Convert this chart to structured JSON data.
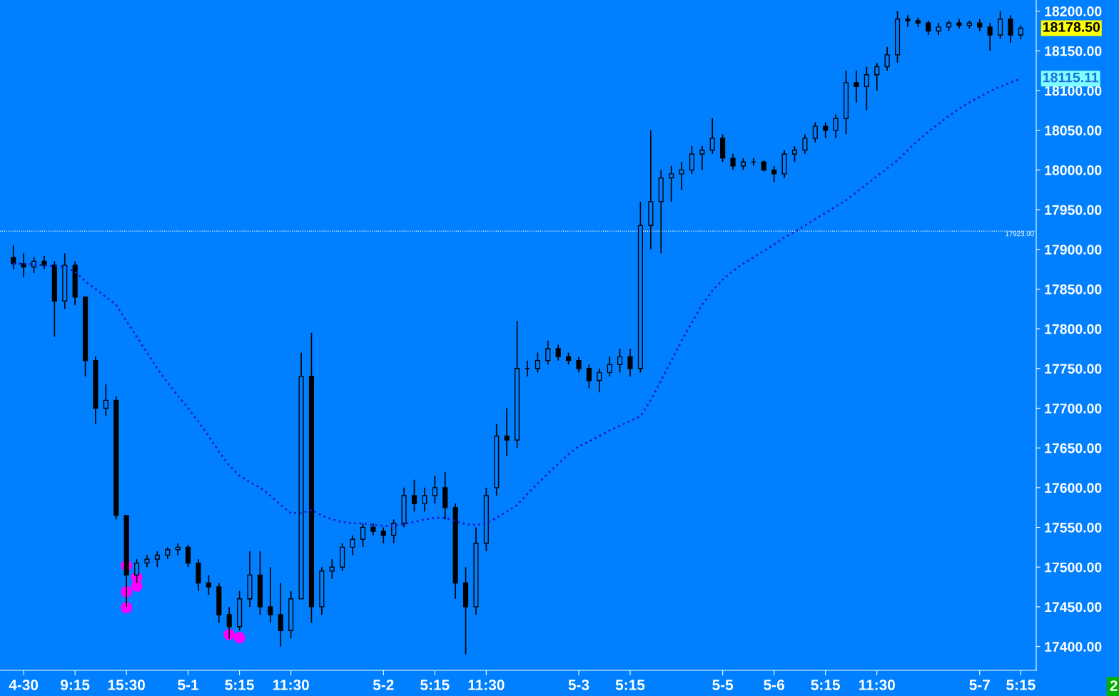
{
  "chart_data": {
    "type": "candlestick",
    "categories": [
      null,
      "4-30",
      null,
      null,
      null,
      null,
      "9:15",
      null,
      null,
      null,
      null,
      "15:30",
      null,
      null,
      null,
      null,
      null,
      "5-1",
      null,
      null,
      null,
      null,
      "5:15",
      null,
      null,
      null,
      null,
      "11:30",
      null,
      null,
      null,
      null,
      null,
      null,
      null,
      null,
      "5-2",
      null,
      null,
      null,
      null,
      "5:15",
      null,
      null,
      null,
      null,
      "11:30",
      null,
      null,
      null,
      null,
      null,
      null,
      null,
      null,
      "5-3",
      null,
      null,
      null,
      null,
      "5:15",
      null,
      null,
      null,
      null,
      null,
      null,
      null,
      null,
      "5-5",
      null,
      null,
      null,
      null,
      "5-6",
      null,
      null,
      null,
      null,
      "5:15",
      null,
      null,
      null,
      null,
      "11:30",
      null,
      null,
      null,
      null,
      null,
      null,
      null,
      null,
      null,
      "5-7",
      null,
      null,
      null,
      "5:15"
    ],
    "series": [
      {
        "color": "#000000",
        "ohlc": [
          [
            17890,
            17905,
            17875,
            17882
          ],
          [
            17882,
            17895,
            17865,
            17878
          ],
          [
            17878,
            17890,
            17870,
            17885
          ],
          [
            17885,
            17892,
            17875,
            17880
          ],
          [
            17880,
            17885,
            17790,
            17835
          ],
          [
            17835,
            17895,
            17825,
            17880
          ],
          [
            17880,
            17885,
            17830,
            17840
          ],
          [
            17840,
            17840,
            17740,
            17760
          ],
          [
            17760,
            17765,
            17680,
            17700
          ],
          [
            17700,
            17730,
            17690,
            17710
          ],
          [
            17710,
            17715,
            17560,
            17565
          ],
          [
            17565,
            17565,
            17450,
            17490
          ],
          [
            17490,
            17510,
            17480,
            17505
          ],
          [
            17505,
            17515,
            17500,
            17510
          ],
          [
            17510,
            17520,
            17500,
            17515
          ],
          [
            17515,
            17525,
            17510,
            17522
          ],
          [
            17522,
            17530,
            17515,
            17525
          ],
          [
            17525,
            17528,
            17500,
            17505
          ],
          [
            17505,
            17510,
            17470,
            17480
          ],
          [
            17480,
            17490,
            17465,
            17475
          ],
          [
            17475,
            17480,
            17430,
            17440
          ],
          [
            17440,
            17450,
            17410,
            17425
          ],
          [
            17425,
            17470,
            17420,
            17460
          ],
          [
            17460,
            17520,
            17450,
            17490
          ],
          [
            17490,
            17520,
            17440,
            17450
          ],
          [
            17450,
            17500,
            17430,
            17440
          ],
          [
            17440,
            17480,
            17400,
            17420
          ],
          [
            17420,
            17470,
            17410,
            17460
          ],
          [
            17460,
            17770,
            17460,
            17740
          ],
          [
            17740,
            17795,
            17430,
            17450
          ],
          [
            17450,
            17500,
            17440,
            17495
          ],
          [
            17495,
            17510,
            17485,
            17500
          ],
          [
            17500,
            17530,
            17495,
            17525
          ],
          [
            17525,
            17540,
            17515,
            17535
          ],
          [
            17535,
            17555,
            17525,
            17550
          ],
          [
            17550,
            17555,
            17540,
            17545
          ],
          [
            17545,
            17550,
            17530,
            17540
          ],
          [
            17540,
            17560,
            17530,
            17555
          ],
          [
            17555,
            17600,
            17550,
            17590
          ],
          [
            17590,
            17610,
            17570,
            17580
          ],
          [
            17580,
            17600,
            17570,
            17590
          ],
          [
            17590,
            17615,
            17580,
            17600
          ],
          [
            17600,
            17620,
            17560,
            17575
          ],
          [
            17575,
            17580,
            17460,
            17480
          ],
          [
            17480,
            17500,
            17390,
            17450
          ],
          [
            17450,
            17550,
            17440,
            17530
          ],
          [
            17530,
            17600,
            17520,
            17590
          ],
          [
            17600,
            17680,
            17590,
            17665
          ],
          [
            17665,
            17700,
            17640,
            17660
          ],
          [
            17660,
            17810,
            17650,
            17750
          ],
          [
            17750,
            17760,
            17740,
            17750
          ],
          [
            17750,
            17770,
            17745,
            17760
          ],
          [
            17760,
            17785,
            17755,
            17775
          ],
          [
            17775,
            17780,
            17760,
            17765
          ],
          [
            17765,
            17770,
            17755,
            17760
          ],
          [
            17760,
            17765,
            17745,
            17750
          ],
          [
            17750,
            17755,
            17725,
            17735
          ],
          [
            17735,
            17750,
            17720,
            17745
          ],
          [
            17745,
            17765,
            17740,
            17755
          ],
          [
            17755,
            17775,
            17745,
            17765
          ],
          [
            17765,
            17775,
            17740,
            17750
          ],
          [
            17750,
            17960,
            17745,
            17930
          ],
          [
            17930,
            18050,
            17900,
            17960
          ],
          [
            17960,
            18000,
            17895,
            17990
          ],
          [
            17990,
            18005,
            17960,
            17995
          ],
          [
            17995,
            18010,
            17975,
            18000
          ],
          [
            18000,
            18030,
            17995,
            18020
          ],
          [
            18020,
            18030,
            18000,
            18025
          ],
          [
            18025,
            18065,
            18020,
            18040
          ],
          [
            18040,
            18045,
            18010,
            18015
          ],
          [
            18015,
            18020,
            18000,
            18005
          ],
          [
            18005,
            18015,
            18000,
            18010
          ],
          [
            18010,
            18015,
            18005,
            18010
          ],
          [
            18010,
            18012,
            17998,
            18000
          ],
          [
            18000,
            18005,
            17985,
            17995
          ],
          [
            17995,
            18025,
            17990,
            18020
          ],
          [
            18020,
            18030,
            18010,
            18025
          ],
          [
            18025,
            18045,
            18020,
            18040
          ],
          [
            18040,
            18060,
            18035,
            18055
          ],
          [
            18055,
            18060,
            18040,
            18050
          ],
          [
            18050,
            18070,
            18040,
            18065
          ],
          [
            18065,
            18125,
            18045,
            18110
          ],
          [
            18110,
            18125,
            18085,
            18105
          ],
          [
            18105,
            18130,
            18075,
            18120
          ],
          [
            18120,
            18135,
            18100,
            18130
          ],
          [
            18130,
            18155,
            18125,
            18145
          ],
          [
            18145,
            18200,
            18135,
            18190
          ],
          [
            18190,
            18195,
            18180,
            18188
          ],
          [
            18188,
            18192,
            18180,
            18185
          ],
          [
            18185,
            18188,
            18170,
            18175
          ],
          [
            18175,
            18185,
            18170,
            18180
          ],
          [
            18180,
            18188,
            18175,
            18185
          ],
          [
            18185,
            18190,
            18178,
            18182
          ],
          [
            18182,
            18188,
            18178,
            18185
          ],
          [
            18185,
            18190,
            18175,
            18180
          ],
          [
            18180,
            18185,
            18150,
            18170
          ],
          [
            18170,
            18200,
            18165,
            18190
          ],
          [
            18190,
            18195,
            18160,
            18170
          ],
          [
            18170,
            18182,
            18165,
            18178.5
          ]
        ]
      },
      {
        "type": "line",
        "color": "#1c1cd0",
        "line_style": "dotted",
        "values": [
          17882,
          17882,
          17881,
          17880,
          17879,
          17878,
          17872,
          17860,
          17850,
          17840,
          17830,
          17810,
          17790,
          17770,
          17750,
          17732,
          17716,
          17700,
          17683,
          17665,
          17645,
          17628,
          17615,
          17607,
          17600,
          17590,
          17578,
          17568,
          17568,
          17572,
          17565,
          17560,
          17557,
          17555,
          17555,
          17553,
          17552,
          17552,
          17554,
          17557,
          17560,
          17562,
          17562,
          17558,
          17554,
          17553,
          17555,
          17562,
          17570,
          17578,
          17592,
          17605,
          17618,
          17630,
          17642,
          17652,
          17658,
          17665,
          17672,
          17678,
          17684,
          17690,
          17710,
          17735,
          17760,
          17785,
          17808,
          17830,
          17848,
          17862,
          17873,
          17882,
          17890,
          17898,
          17906,
          17915,
          17922,
          17930,
          17938,
          17946,
          17954,
          17962,
          17972,
          17982,
          17992,
          18002,
          18012,
          18025,
          18037,
          18048,
          18058,
          18068,
          18077,
          18085,
          18092,
          18099,
          18105,
          18110,
          18115
        ]
      },
      {
        "type": "scatter",
        "color": "#ff00ff",
        "marker": "circle",
        "values": [
          null,
          null,
          null,
          null,
          null,
          null,
          null,
          null,
          null,
          null,
          null,
          17469,
          17487,
          null,
          null,
          null,
          null,
          null,
          null,
          null,
          null,
          17415,
          null,
          null,
          null,
          null,
          null,
          null,
          null,
          null,
          null,
          null,
          null,
          null,
          null,
          null,
          null,
          null,
          null,
          null,
          null,
          null,
          null,
          null,
          null,
          null,
          null,
          null,
          null,
          null,
          null,
          null,
          null,
          null,
          null,
          null,
          null,
          null,
          null,
          null,
          null,
          null,
          null,
          null,
          null,
          null,
          null,
          null,
          null,
          null,
          null,
          null,
          null,
          null,
          null,
          null,
          null,
          null,
          null,
          null,
          null,
          null,
          null,
          null,
          null,
          null,
          null,
          null,
          null,
          null,
          null,
          null,
          null,
          null,
          null,
          null,
          null,
          null,
          null
        ]
      },
      {
        "type": "scatter",
        "color": "#ff00ff",
        "marker": "circle",
        "values": [
          null,
          null,
          null,
          null,
          null,
          null,
          null,
          null,
          null,
          null,
          null,
          17449,
          17476,
          null,
          null,
          null,
          null,
          null,
          null,
          null,
          null,
          null,
          17411,
          null,
          null,
          null,
          null,
          null,
          null,
          null,
          null,
          null,
          null,
          null,
          null,
          null,
          null,
          null,
          null,
          null,
          null,
          null,
          null,
          null,
          null,
          null,
          null,
          null,
          null,
          null,
          null,
          null,
          null,
          null,
          null,
          null,
          null,
          null,
          null,
          null,
          null,
          null,
          null,
          null,
          null,
          null,
          null,
          null,
          null,
          null,
          null,
          null,
          null,
          null,
          null,
          null,
          null,
          null,
          null,
          null,
          null,
          null,
          null,
          null,
          null,
          null,
          null,
          null,
          null,
          null,
          null,
          null,
          null,
          null,
          null,
          null,
          null,
          null,
          null
        ]
      },
      {
        "type": "scatter",
        "color": "#ff00ff",
        "marker": "circle",
        "values": [
          null,
          null,
          null,
          null,
          null,
          null,
          null,
          null,
          null,
          null,
          null,
          17502,
          null,
          null,
          null,
          null,
          null,
          null,
          null,
          null,
          null,
          null,
          null,
          null,
          null,
          null,
          null,
          null,
          null,
          null,
          null,
          null,
          null,
          null,
          null,
          null,
          null,
          null,
          null,
          null,
          null,
          null,
          null,
          null,
          null,
          null,
          null,
          null,
          null,
          null,
          null,
          null,
          null,
          null,
          null,
          null,
          null,
          null,
          null,
          null,
          null,
          null,
          null,
          null,
          null,
          null,
          null,
          null,
          null,
          null,
          null,
          null,
          null,
          null,
          null,
          null,
          null,
          null,
          null,
          null,
          null,
          null,
          null,
          null,
          null,
          null,
          null,
          null,
          null,
          null,
          null,
          null,
          null,
          null,
          null,
          null,
          null,
          null,
          null
        ]
      }
    ],
    "ylim": [
      17370,
      18214
    ],
    "yticks": [
      {
        "value": 17400,
        "label": "17400.00"
      },
      {
        "value": 17450,
        "label": "17450.00"
      },
      {
        "value": 17500,
        "label": "17500.00"
      },
      {
        "value": 17550,
        "label": "17550.00"
      },
      {
        "value": 17600,
        "label": "17600.00"
      },
      {
        "value": 17650,
        "label": "17650.00"
      },
      {
        "value": 17700,
        "label": "17700.00"
      },
      {
        "value": 17750,
        "label": "17750.00"
      },
      {
        "value": 17800,
        "label": "17800.00"
      },
      {
        "value": 17850,
        "label": "17850.00"
      },
      {
        "value": 17900,
        "label": "17900.00"
      },
      {
        "value": 17950,
        "label": "17950.00"
      },
      {
        "value": 18000,
        "label": "18000.00"
      },
      {
        "value": 18050,
        "label": "18050.00"
      },
      {
        "value": 18100,
        "label": "18100.00"
      },
      {
        "value": 18150,
        "label": "18150.00"
      },
      {
        "value": 18200,
        "label": "18200.00"
      }
    ],
    "ref_lines": [
      {
        "axis": "y",
        "value": 17923,
        "label": "17923.00",
        "color": "#ffffff",
        "line_style": "dotted"
      }
    ],
    "annotations": [
      "18178.50",
      "18115.11",
      "2"
    ],
    "grid": false,
    "legend": false
  }
}
